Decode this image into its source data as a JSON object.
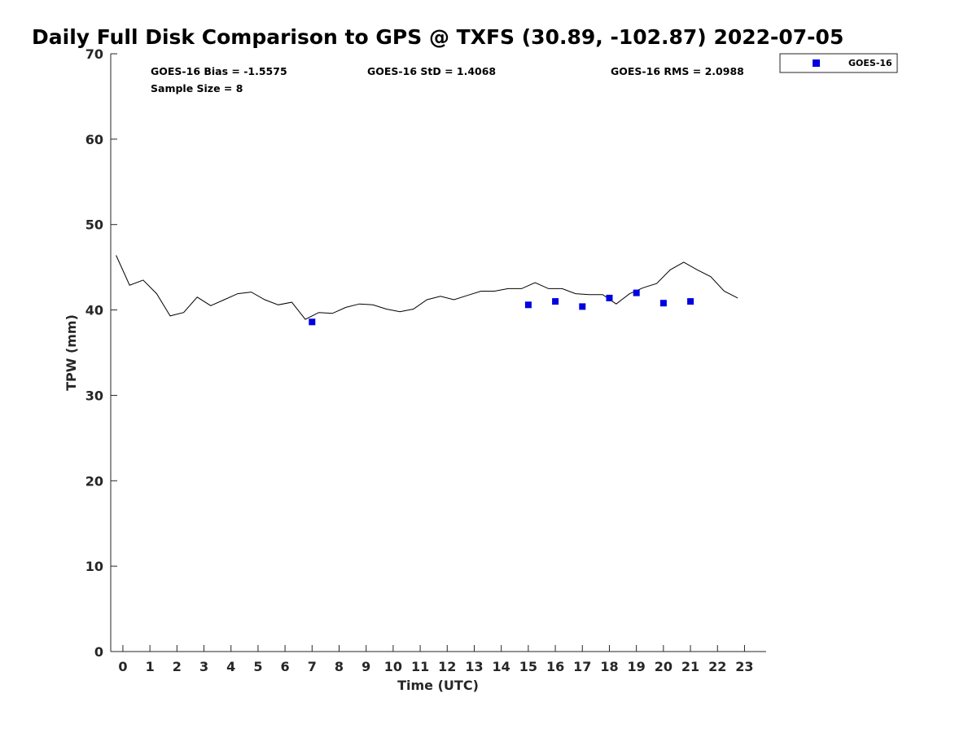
{
  "chart_data": {
    "type": "scatter",
    "title": "Daily Full Disk Comparison to GPS @ TXFS (30.89, -102.87) 2022-07-05",
    "xlabel": "Time (UTC)",
    "ylabel": "TPW (mm)",
    "xlim": [
      -0.45,
      23.8
    ],
    "ylim": [
      0,
      70
    ],
    "x_ticks": [
      0,
      1,
      2,
      3,
      4,
      5,
      6,
      7,
      8,
      9,
      10,
      11,
      12,
      13,
      14,
      15,
      16,
      17,
      18,
      19,
      20,
      21,
      22,
      23
    ],
    "x_tick_labels": [
      "0",
      "1",
      "2",
      "3",
      "4",
      "5",
      "6",
      "7",
      "8",
      "9",
      "10",
      "11",
      "12",
      "13",
      "14",
      "15",
      "16",
      "17",
      "18",
      "19",
      "20",
      "21",
      "22",
      "23"
    ],
    "y_ticks": [
      0,
      10,
      20,
      30,
      40,
      50,
      60,
      70
    ],
    "y_tick_labels": [
      "0",
      "10",
      "20",
      "30",
      "40",
      "50",
      "60",
      "70"
    ],
    "grid": false,
    "legend_position": "top-right, outside plot",
    "stats": [
      "GOES-16 Bias = -1.5575",
      "GOES-16 StD = 1.4068",
      "GOES-16 RMS = 2.0988",
      "Sample Size = 8"
    ],
    "series": [
      {
        "kind": "line",
        "color": "#000000",
        "x": [
          -0.25,
          0.25,
          0.75,
          1.25,
          1.75,
          2.25,
          2.75,
          3.25,
          3.75,
          4.25,
          4.75,
          5.25,
          5.75,
          6.25,
          6.75,
          7.25,
          7.75,
          8.25,
          8.75,
          9.25,
          9.75,
          10.25,
          10.75,
          11.25,
          11.75,
          12.25,
          12.75,
          13.25,
          13.75,
          14.25,
          14.75,
          15.25,
          15.75,
          16.25,
          16.75,
          17.25,
          17.75,
          18.25,
          18.75,
          19.25,
          19.75,
          20.25,
          20.75,
          21.25,
          21.75,
          22.25,
          22.75
        ],
        "y": [
          46.4,
          42.9,
          43.5,
          41.9,
          39.3,
          39.7,
          41.5,
          40.5,
          41.2,
          41.9,
          42.1,
          41.2,
          40.6,
          40.9,
          38.9,
          39.7,
          39.6,
          40.3,
          40.7,
          40.6,
          40.1,
          39.8,
          40.1,
          41.2,
          41.6,
          41.2,
          41.7,
          42.2,
          42.2,
          42.5,
          42.5,
          43.2,
          42.5,
          42.5,
          41.9,
          41.8,
          41.8,
          40.7,
          41.9,
          42.6,
          43.1,
          44.7,
          45.6,
          44.7,
          43.9,
          42.2,
          41.4
        ]
      },
      {
        "name": "GOES-16",
        "kind": "scatter",
        "marker": "square",
        "color": "#0000e0",
        "x": [
          7,
          15,
          16,
          17,
          18,
          19,
          20,
          21
        ],
        "y": [
          38.6,
          40.6,
          41.0,
          40.4,
          41.4,
          42.0,
          40.8,
          41.0
        ]
      }
    ]
  }
}
